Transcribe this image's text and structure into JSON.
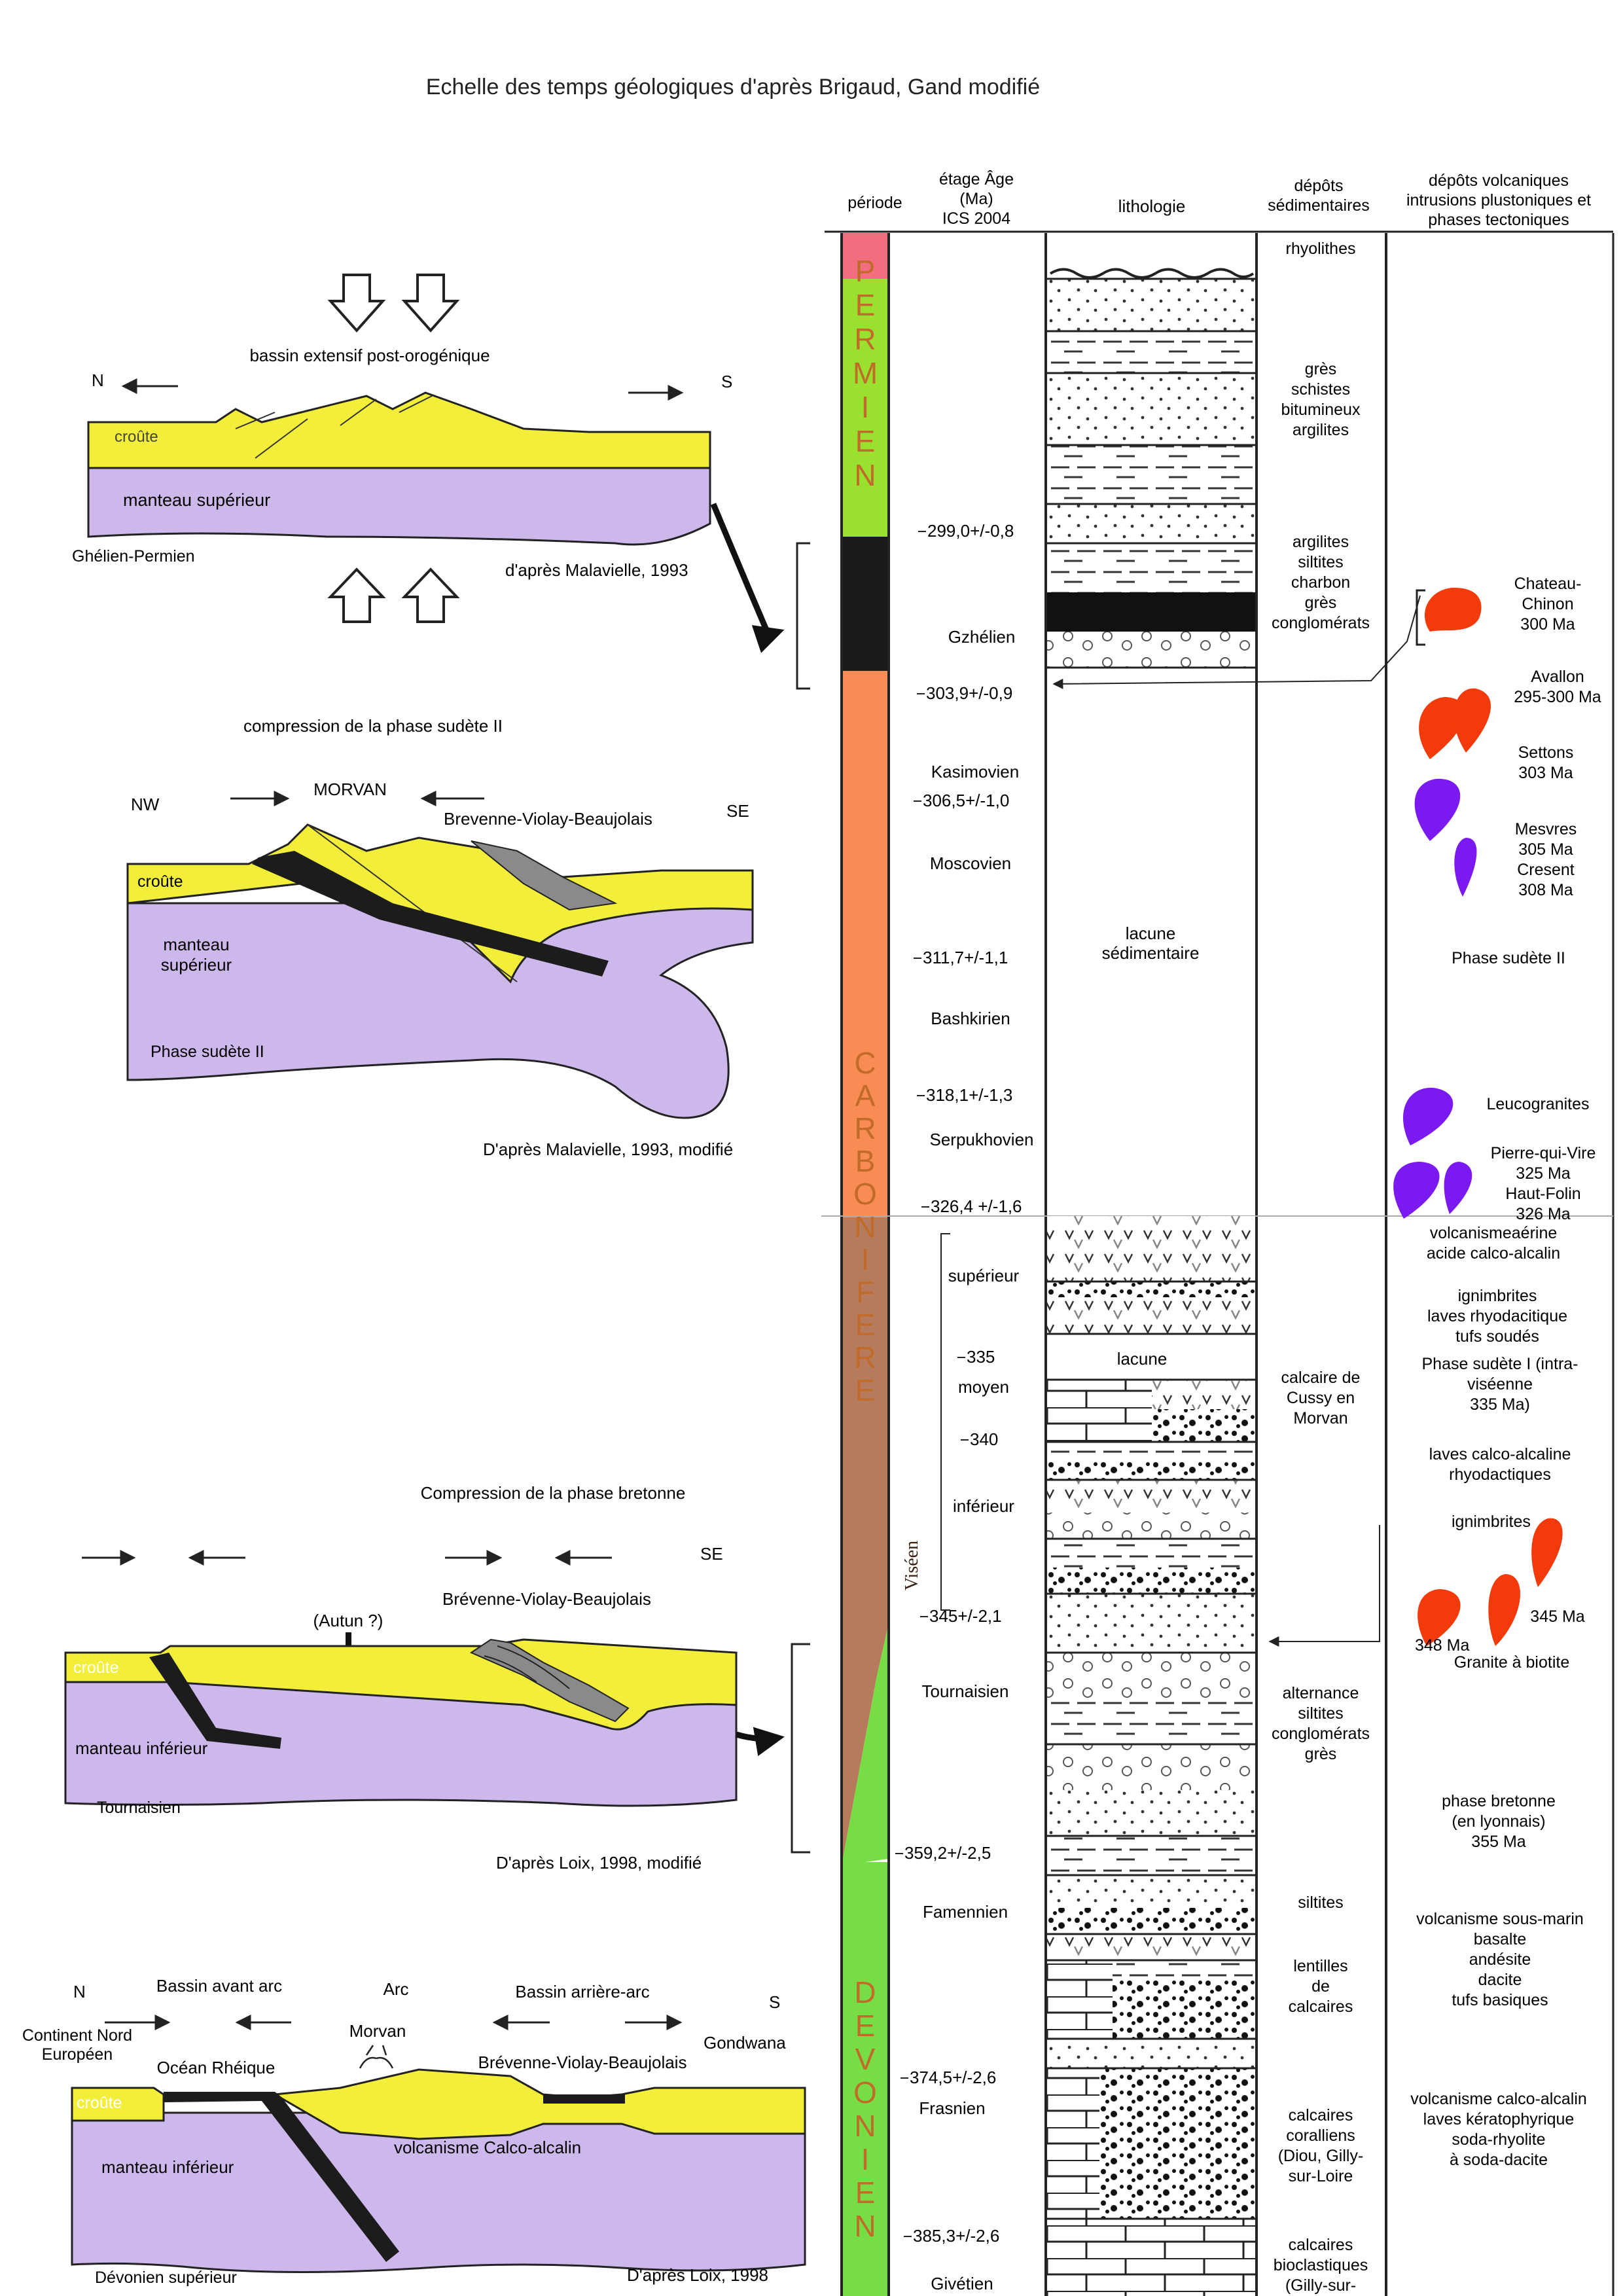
{
  "title": "Echelle  des temps géologiques d'après Brigaud, Gand modifié",
  "colors": {
    "crust": "#f2ee3a",
    "mantle": "#cdb8ec",
    "slab": "#1c1c1c",
    "slab_grey": "#8a8a8a",
    "permien": "#99e02f",
    "permien_top": "#f26d7d",
    "gzhelien": "#1a1a1a",
    "carbonifere": "#f98b54",
    "visean": "#b57b5c",
    "devonien": "#76de44",
    "volc_red": "#f23a0a",
    "volc_purple": "#7a1af0"
  },
  "column": {
    "headers": {
      "periode": "période",
      "etage": [
        "étage Âge",
        "(Ma)",
        "ICS 2004"
      ],
      "lithologie": "lithologie",
      "depots": [
        "dépôts",
        "sédimentaires"
      ],
      "volcaniques": [
        "dépôts volcaniques",
        "intrusions plustoniques et",
        "phases tectoniques"
      ]
    },
    "periods": {
      "permien": [
        "P",
        "E",
        "R",
        "M",
        "I",
        "E",
        "N"
      ],
      "carbonifere": [
        "C",
        "A",
        "R",
        "B",
        "O",
        "N",
        "I",
        "F",
        "E",
        "R",
        "E"
      ],
      "devonien": [
        "D",
        "E",
        "V",
        "O",
        "N",
        "I",
        "E",
        "N"
      ],
      "visean": "Viséen"
    },
    "ages": [
      {
        "label": "299,0+/-0,8"
      },
      {
        "label": "303,9+/-0,9"
      },
      {
        "label": "306,5+/-1,0"
      },
      {
        "label": "311,7+/-1,1"
      },
      {
        "label": "318,1+/-1,3"
      },
      {
        "label": "326,4 +/-1,6"
      },
      {
        "label": "335"
      },
      {
        "label": "340"
      },
      {
        "label": "345+/-2,1"
      },
      {
        "label": "359,2+/-2,5"
      },
      {
        "label": "374,5+/-2,6"
      },
      {
        "label": "385,3+/-2,6"
      }
    ],
    "stages": [
      "Gzhélien",
      "Kasimovien",
      "Moscovien",
      "Bashkirien",
      "Serpukhovien",
      "supérieur",
      "moyen",
      "inférieur",
      "Tournaisien",
      "Famennien",
      "Frasnien",
      "Givétien"
    ],
    "litho_labels": {
      "lacune_sed": [
        "lacune",
        "sédimentaire"
      ],
      "lacune": "lacune"
    },
    "depots": [
      {
        "lines": [
          "rhyolithes"
        ]
      },
      {
        "lines": [
          "grès",
          "schistes",
          "bitumineux",
          "argilites"
        ]
      },
      {
        "lines": [
          "argilites",
          "siltites",
          "charbon",
          "grès",
          "conglomérats"
        ]
      },
      {
        "lines": [
          "calcaire de",
          "Cussy en",
          "Morvan"
        ]
      },
      {
        "lines": [
          "alternance",
          "siltites",
          "conglomérats",
          "grès"
        ]
      },
      {
        "lines": [
          "siltites"
        ]
      },
      {
        "lines": [
          "lentilles",
          "de",
          "calcaires"
        ]
      },
      {
        "lines": [
          "calcaires",
          "coralliens",
          "(Diou, Gilly-",
          "sur-Loire"
        ]
      },
      {
        "lines": [
          "calcaires",
          "bioclastiques",
          "(Gilly-sur-"
        ]
      }
    ],
    "volcanics": [
      {
        "lines": [
          "Chateau-",
          "Chinon",
          "300 Ma"
        ]
      },
      {
        "lines": [
          "Avallon",
          "295-300 Ma"
        ]
      },
      {
        "lines": [
          "Settons",
          "303 Ma"
        ]
      },
      {
        "lines": [
          "Mesvres",
          "305 Ma",
          "Cresent",
          "308 Ma"
        ]
      },
      {
        "lines": [
          "Phase sudète II"
        ]
      },
      {
        "lines": [
          "Leucogranites"
        ]
      },
      {
        "lines": [
          "Pierre-qui-Vire",
          "325 Ma",
          "Haut-Folin",
          "326 Ma"
        ]
      },
      {
        "lines": [
          "volcanismeaérine",
          "acide calco-alcalin"
        ]
      },
      {
        "lines": [
          "ignimbrites",
          "laves rhyodacitique",
          "tufs soudés"
        ]
      },
      {
        "lines": [
          "Phase sudète I (intra-",
          "viséenne",
          "335 Ma)"
        ]
      },
      {
        "lines": [
          "laves calco-alcaline",
          "rhyodactiques"
        ]
      },
      {
        "lines": [
          "ignimbrites"
        ]
      },
      {
        "lines": [
          "345 Ma"
        ]
      },
      {
        "lines": [
          "348 Ma"
        ]
      },
      {
        "lines": [
          "Granite à biotite"
        ]
      },
      {
        "lines": [
          "phase bretonne",
          "(en lyonnais)",
          "355 Ma"
        ]
      },
      {
        "lines": [
          "volcanisme sous-marin",
          "basalte",
          "andésite",
          "dacite",
          "tufs basiques"
        ]
      },
      {
        "lines": [
          "volcanisme calco-alcalin",
          "laves kératophyrique",
          "soda-rhyolite",
          "à soda-dacite"
        ]
      }
    ]
  },
  "sections": {
    "s1": {
      "caption": "bassin extensif post-orogénique",
      "n": "N",
      "s": "S",
      "crust": "croûte",
      "mantle": "manteau supérieur",
      "age": "Ghélien-Permien",
      "source": "d'après Malavielle, 1993"
    },
    "s2": {
      "caption": "compression de la phase sudète II",
      "nw": "NW",
      "morvan": "MORVAN",
      "brevenne": "Brevenne-Violay-Beaujolais",
      "se": "SE",
      "crust": "croûte",
      "mantle": [
        "manteau",
        "supérieur"
      ],
      "phase": "Phase sudète II",
      "source": "D'après Malavielle, 1993, modifié"
    },
    "s3": {
      "caption": "Compression de la phase bretonne",
      "se": "SE",
      "brevenne": "Brévenne-Violay-Beaujolais",
      "autun": "(Autun ?)",
      "crust": "croûte",
      "mantle": "manteau inférieur",
      "age": "Tournaisien",
      "source": "D'après Loix, 1998, modifié"
    },
    "s4": {
      "n": "N",
      "s": "S",
      "avant_arc": "Bassin avant arc",
      "arc": "Arc",
      "arriere_arc": "Bassin arrière-arc",
      "continent": [
        "Continent Nord",
        "Européen"
      ],
      "gondwana": "Gondwana",
      "morvan": "Morvan",
      "ocean": "Océan Rhéique",
      "brevenne": "Brévenne-Violay-Beaujolais",
      "crust": "croûte",
      "mantle": "manteau inférieur",
      "volcanisme": "volcanisme Calco-alcalin",
      "age": "Dévonien supérieur",
      "source": "D'après Loix, 1998"
    }
  }
}
